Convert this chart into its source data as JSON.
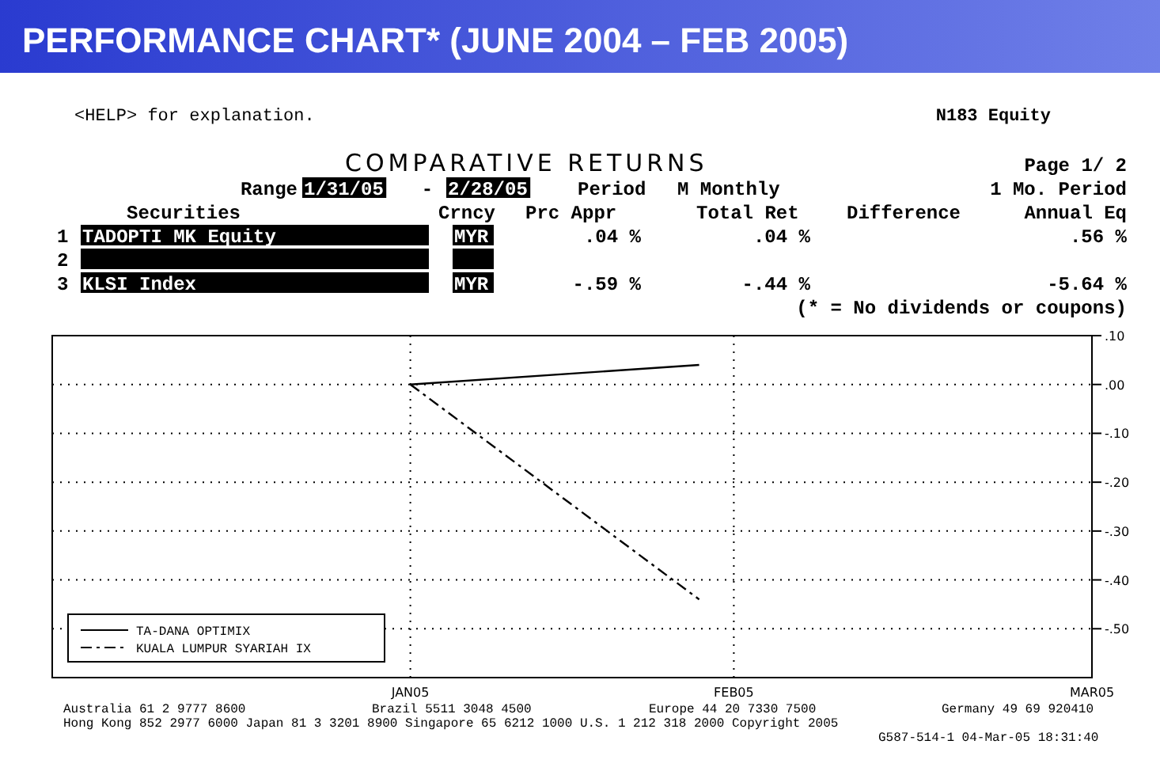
{
  "chart_data": {
    "type": "line",
    "title": "PERFORMANCE CHART* (JUNE 2004 – FEB 2005)",
    "subtitle": "COMPARATIVE RETURNS",
    "x": [
      "2005-01-31",
      "2005-02-25"
    ],
    "series": [
      {
        "name": "TA-DANA OPTIMIX",
        "color": "#000000",
        "values": [
          0,
          0.04
        ],
        "line_style": "solid"
      },
      {
        "name": "KUALA LUMPUR SYARIAH IX",
        "color": "#000000",
        "values": [
          0,
          -0.44
        ],
        "line_style": "dashed"
      }
    ],
    "xlim": [
      "2004-12-31",
      "2005-03-31"
    ],
    "xticks": [
      {
        "value": "2005-01-31",
        "label": "JAN05"
      },
      {
        "value": "2005-02-28",
        "label": "FEB05"
      },
      {
        "value": "2005-03-31",
        "label": "MAR05"
      }
    ],
    "ylim": [
      -0.6,
      0.1
    ],
    "yticks": [
      {
        "value": 0.1,
        "label": ".10"
      },
      {
        "value": 0,
        "label": ".00"
      },
      {
        "value": -0.1,
        "label": "-.10"
      },
      {
        "value": -0.2,
        "label": "-.20"
      },
      {
        "value": -0.3,
        "label": "-.30"
      },
      {
        "value": -0.4,
        "label": "-.40"
      },
      {
        "value": -0.5,
        "label": "-.50"
      }
    ],
    "grid": true,
    "legend": "bottom left",
    "annotations": [
      "<HELP> for explanation.",
      "N183 Equity",
      "Page 1/ 2",
      "Range",
      "1/31/05",
      "-",
      "2/28/05",
      "Period",
      "M Monthly",
      "1 Mo. Period",
      "Securities",
      "Crncy",
      "Prc Appr",
      "Total Ret",
      "Difference",
      "Annual Eq",
      "1",
      "TADOPTI MK Equity",
      "MYR",
      ".04 %",
      ".04 %",
      ".56 %",
      "2",
      "3",
      "KLSI Index",
      "MYR",
      "-.59 %",
      "-.44 %",
      "-5.64 %",
      "(* = No dividends or coupons)",
      "Australia 61 2 9777 8600",
      "Brazil 5511 3048 4500",
      "Europe 44 20 7330 7500",
      "Germany 49 69 920410",
      "Hong Kong 852 2977 6000 Japan 81 3 3201 8900 Singapore 65 6212 1000 U.S. 1 212 318 2000 Copyright 2005",
      "G587-514-1 04-Mar-05 18:31:40"
    ]
  }
}
